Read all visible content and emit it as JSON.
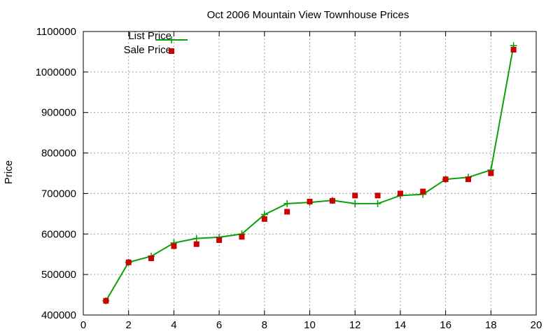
{
  "chart_data": {
    "type": "line",
    "title": "Oct 2006 Mountain View Townhouse Prices",
    "xlabel": "",
    "ylabel": "Price",
    "xlim": [
      0,
      20
    ],
    "ylim": [
      400000,
      1100000
    ],
    "x_ticks": [
      0,
      2,
      4,
      6,
      8,
      10,
      12,
      14,
      16,
      18,
      20
    ],
    "y_ticks": [
      400000,
      500000,
      600000,
      700000,
      800000,
      900000,
      1000000,
      1100000
    ],
    "grid": true,
    "legend_position": "top-left",
    "series": [
      {
        "name": "List Price",
        "style": "linespoints",
        "color": "#0aa00a",
        "marker": "plus",
        "x": [
          1,
          2,
          3,
          4,
          5,
          6,
          7,
          8,
          9,
          10,
          11,
          12,
          13,
          14,
          15,
          16,
          17,
          18,
          19
        ],
        "y": [
          435000,
          530000,
          545000,
          578000,
          589000,
          592000,
          600000,
          648000,
          675000,
          678000,
          683000,
          675000,
          675000,
          695000,
          698000,
          735000,
          740000,
          758000,
          1065000
        ]
      },
      {
        "name": "Sale Price",
        "style": "points",
        "color": "#cc0000",
        "marker": "square",
        "x": [
          1,
          2,
          3,
          4,
          5,
          6,
          7,
          8,
          9,
          10,
          11,
          12,
          13,
          14,
          15,
          16,
          17,
          18,
          19
        ],
        "y": [
          435000,
          530000,
          540000,
          570000,
          575000,
          585000,
          593000,
          637000,
          655000,
          680000,
          682000,
          695000,
          695000,
          700000,
          705000,
          735000,
          735000,
          750000,
          1055000
        ]
      }
    ]
  }
}
